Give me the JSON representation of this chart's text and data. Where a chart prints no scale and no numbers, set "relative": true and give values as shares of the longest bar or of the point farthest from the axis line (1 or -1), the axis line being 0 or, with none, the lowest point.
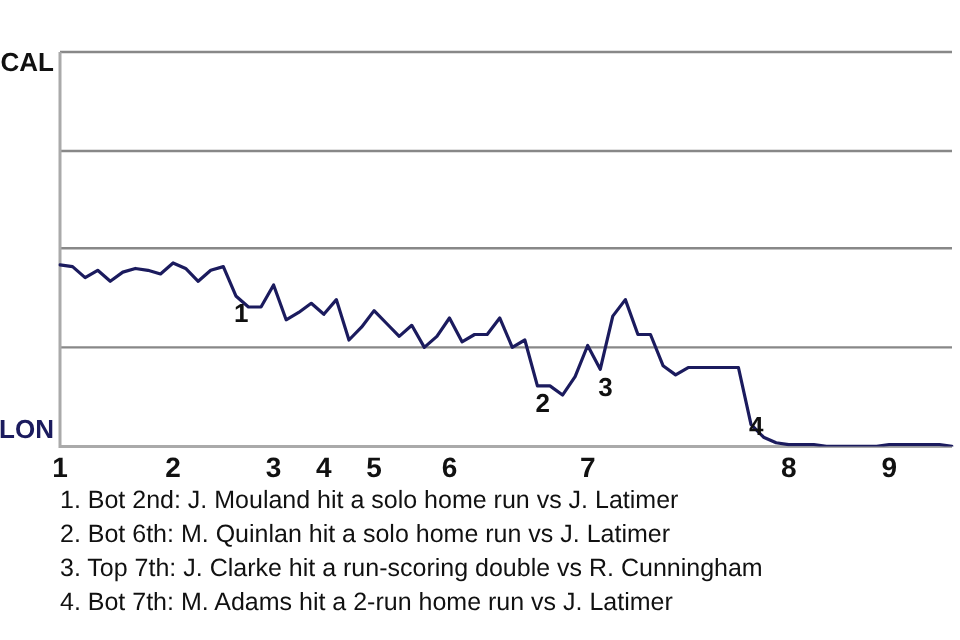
{
  "chart_data": {
    "type": "line",
    "relative": true,
    "marker": "none",
    "legend": false,
    "ref_lines": [
      {
        "axis": "y",
        "value": 0.54,
        "color": "#888888"
      },
      {
        "axis": "y",
        "value": 1.08,
        "color": "#888888"
      },
      {
        "axis": "y",
        "value": 1.61,
        "color": "#888888"
      },
      {
        "axis": "y",
        "value": 2.15,
        "color": "#888888"
      }
    ],
    "categories": [
      "1",
      null,
      null,
      null,
      null,
      null,
      null,
      null,
      null,
      "2",
      null,
      null,
      null,
      null,
      null,
      null,
      null,
      "3",
      null,
      null,
      null,
      "4",
      null,
      null,
      null,
      "5",
      null,
      null,
      null,
      null,
      null,
      "6",
      null,
      null,
      null,
      null,
      null,
      null,
      null,
      null,
      null,
      null,
      "7",
      null,
      null,
      null,
      null,
      null,
      null,
      null,
      null,
      null,
      null,
      null,
      null,
      null,
      null,
      null,
      "8",
      null,
      null,
      null,
      null,
      null,
      null,
      null,
      "9",
      null,
      null,
      null,
      null,
      null
    ],
    "series": [
      {
        "color": "#1b1b5e",
        "values": [
          0.99,
          0.98,
          0.92,
          0.96,
          0.9,
          0.95,
          0.97,
          0.96,
          0.94,
          1,
          0.97,
          0.9,
          0.96,
          0.98,
          0.82,
          0.76,
          0.76,
          0.88,
          0.69,
          0.73,
          0.78,
          0.72,
          0.8,
          0.58,
          0.65,
          0.74,
          0.67,
          0.6,
          0.66,
          0.54,
          0.6,
          0.7,
          0.57,
          0.61,
          0.61,
          0.7,
          0.54,
          0.58,
          0.33,
          0.33,
          0.28,
          0.38,
          0.55,
          0.42,
          0.71,
          0.8,
          0.61,
          0.61,
          0.44,
          0.39,
          0.43,
          0.43,
          0.43,
          0.43,
          0.43,
          0.12,
          0.05,
          0.02,
          0.01,
          0.01,
          0.01,
          0,
          0,
          0,
          0,
          0,
          0.01,
          0.01,
          0.01,
          0.01,
          0.01,
          0
        ]
      }
    ],
    "annotations": [
      "CAL",
      "LON",
      {
        "text": "1",
        "y": 0.82
      },
      {
        "text": "2",
        "y": 0.33
      },
      {
        "text": "3",
        "y": 0.42
      },
      {
        "text": "4",
        "y": 0.12
      },
      "1. Bot 2nd: J. Mouland hit a solo home run vs J. Latimer",
      "2. Bot 6th: M. Quinlan hit a solo home run vs J. Latimer",
      "3. Top 7th: J. Clarke hit a run-scoring double vs R. Cunningham",
      "4. Bot 7th: M. Adams hit a 2-run home run vs J. Latimer"
    ]
  }
}
